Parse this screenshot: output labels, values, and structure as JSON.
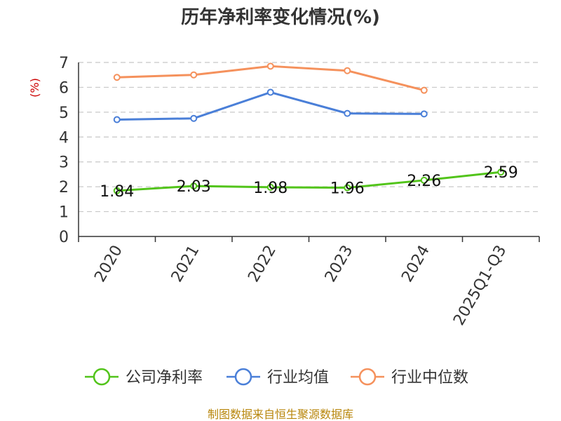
{
  "chart_data": {
    "type": "line",
    "title": "历年净利率变化情况(%)",
    "ylabel": "(%)",
    "ylim": [
      0,
      7
    ],
    "yticks": [
      0,
      1,
      2,
      3,
      4,
      5,
      6,
      7
    ],
    "grid": true,
    "legend_position": "bottom",
    "categories": [
      "2020",
      "2021",
      "2022",
      "2023",
      "2024",
      "2025Q1-Q3"
    ],
    "series": [
      {
        "name": "公司净利率",
        "color": "#52c41a",
        "show_labels": true,
        "values": [
          1.84,
          2.03,
          1.98,
          1.96,
          2.26,
          2.59
        ]
      },
      {
        "name": "行业均值",
        "color": "#4a7fd8",
        "show_labels": false,
        "values": [
          4.7,
          4.75,
          5.8,
          4.95,
          4.93,
          null
        ]
      },
      {
        "name": "行业中位数",
        "color": "#f5915c",
        "show_labels": false,
        "values": [
          6.4,
          6.5,
          6.85,
          6.67,
          5.88,
          null
        ]
      }
    ]
  },
  "source": "制图数据来自恒生聚源数据库"
}
